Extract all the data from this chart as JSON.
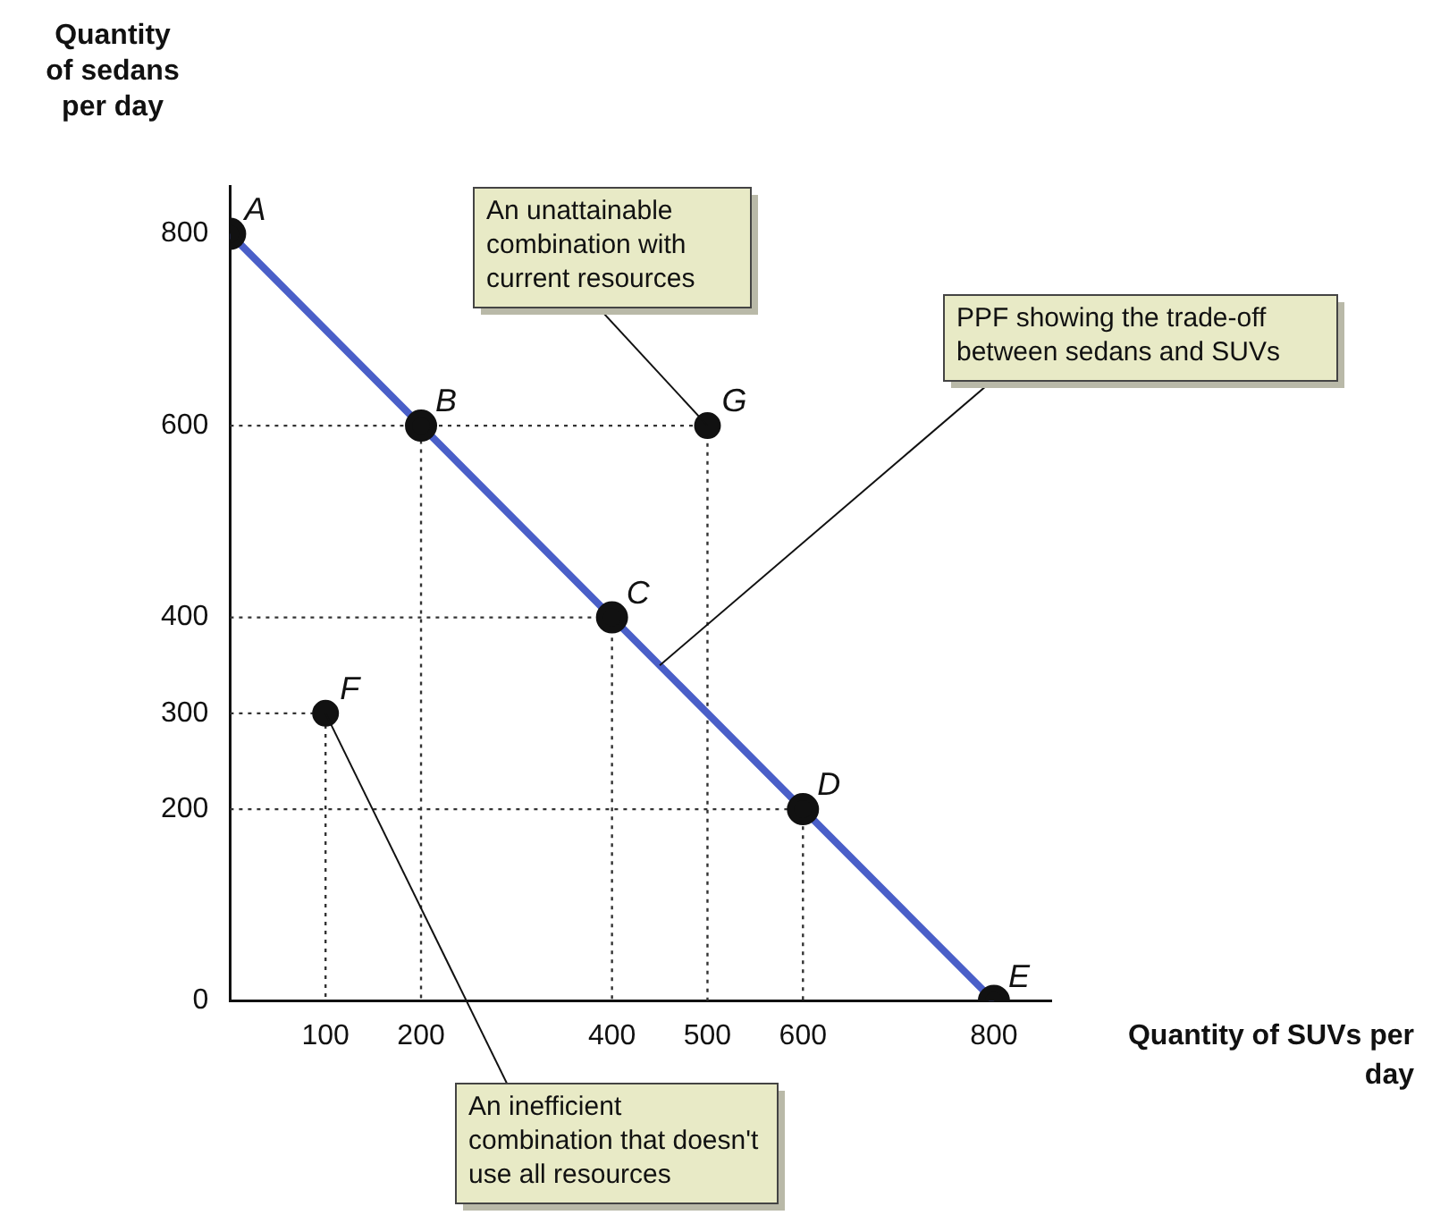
{
  "chart_data": {
    "type": "line",
    "xlabel": "Quantity of SUVs per day",
    "ylabel": "Quantity of sedans per day",
    "xlim": [
      0,
      860
    ],
    "ylim": [
      0,
      850
    ],
    "xticks": [
      100,
      200,
      400,
      500,
      600,
      800
    ],
    "yticks": [
      0,
      200,
      300,
      400,
      600,
      800
    ],
    "grid": false,
    "legend": false,
    "marker": "circle",
    "line_style": "solid",
    "series": [
      {
        "color": "#4a5fc8",
        "x": [
          0,
          200,
          400,
          600,
          800
        ],
        "values": [
          800,
          600,
          400,
          200,
          0
        ]
      },
      {
        "type": "line",
        "color": "#333333",
        "line_style": "dotted",
        "marker": "none",
        "x": [
          0,
          200,
          200
        ],
        "values": [
          600,
          600,
          0
        ]
      },
      {
        "type": "line",
        "color": "#333333",
        "line_style": "dotted",
        "marker": "none",
        "x": [
          0,
          400,
          400
        ],
        "values": [
          400,
          400,
          0
        ]
      },
      {
        "type": "line",
        "color": "#333333",
        "line_style": "dotted",
        "marker": "none",
        "x": [
          0,
          600,
          600
        ],
        "values": [
          200,
          200,
          0
        ]
      },
      {
        "type": "line",
        "color": "#333333",
        "line_style": "dotted",
        "marker": "none",
        "x": [
          0,
          100,
          100
        ],
        "values": [
          300,
          300,
          0
        ]
      },
      {
        "type": "line",
        "color": "#333333",
        "line_style": "dotted",
        "marker": "none",
        "x": [
          200,
          500,
          500
        ],
        "values": [
          600,
          600,
          0
        ]
      },
      {
        "type": "scatter",
        "color": "#111111",
        "x": [
          100,
          500
        ],
        "values": [
          300,
          600
        ]
      }
    ],
    "annotations": [
      {
        "text": "A",
        "x": 0,
        "y": 800
      },
      {
        "text": "B",
        "x": 200,
        "y": 600
      },
      {
        "text": "C",
        "x": 400,
        "y": 400
      },
      {
        "text": "D",
        "x": 600,
        "y": 200
      },
      {
        "text": "E",
        "x": 800,
        "y": 0
      },
      {
        "text": "F",
        "x": 100,
        "y": 300
      },
      {
        "text": "G",
        "x": 500,
        "y": 600
      },
      {
        "text": "An unattainable combination with current resources",
        "x": 500,
        "y": 600
      },
      {
        "text": "PPF showing the trade-off between sedans and SUVs",
        "x": 450,
        "y": 350
      },
      {
        "text": "An inefficient combination that doesn't use all resources",
        "x": 100,
        "y": 300
      }
    ]
  }
}
